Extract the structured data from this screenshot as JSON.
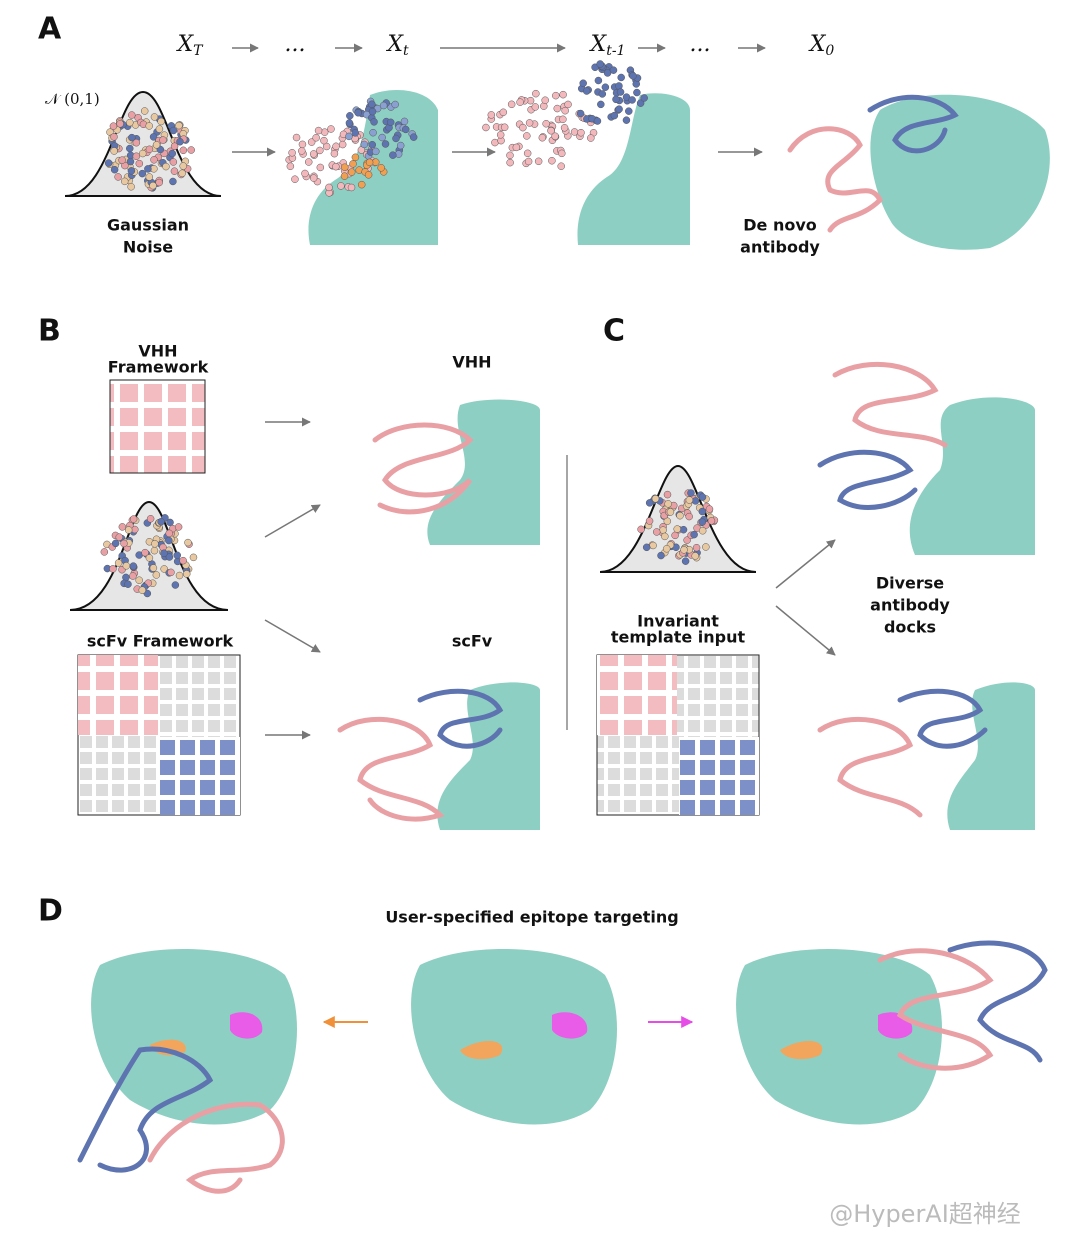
{
  "panel_a": {
    "label": "A",
    "steps": [
      {
        "text": "X",
        "sub": "T"
      },
      {
        "text": "..."
      },
      {
        "text": "X",
        "sub": "t"
      },
      {
        "text": "X",
        "sub": "t-1"
      },
      {
        "text": "..."
      },
      {
        "text": "X",
        "sub": "0"
      }
    ],
    "distribution": "𝒩 (0,1)",
    "noise_label": [
      "Gaussian",
      "Noise"
    ],
    "result_label": [
      "De novo",
      "antibody"
    ]
  },
  "panel_b": {
    "label": "B",
    "vhh_framework": [
      "VHH",
      "Framework"
    ],
    "scfv_framework": "scFv Framework",
    "vhh": "VHH",
    "scfv": "scFv"
  },
  "panel_c": {
    "label": "C",
    "template": [
      "Invariant",
      "template input"
    ],
    "docks": [
      "Diverse",
      "antibody",
      "docks"
    ]
  },
  "panel_d": {
    "label": "D",
    "title": "User-specified epitope targeting"
  },
  "watermark": "@HyperAI超神经"
}
